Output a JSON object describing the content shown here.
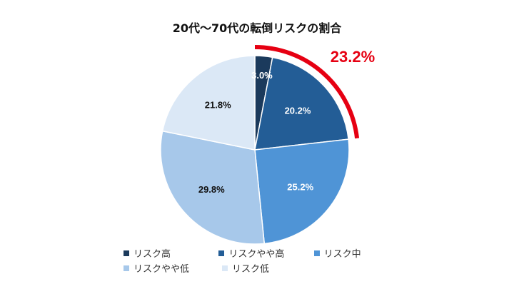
{
  "chart_data": {
    "type": "pie",
    "title": "20代～70代の転倒リスクの割合",
    "categories": [
      "リスク高",
      "リスクやや高",
      "リスク中",
      "リスクやや低",
      "リスク低"
    ],
    "values": [
      3.0,
      20.2,
      25.2,
      29.8,
      21.8
    ],
    "labels": [
      "3.0%",
      "20.2%",
      "25.2%",
      "29.8%",
      "21.8%"
    ],
    "colors": [
      "#1b3a5c",
      "#235d96",
      "#4f94d6",
      "#a7c8ea",
      "#dbe8f6"
    ],
    "label_colors": [
      "#ffffff",
      "#ffffff",
      "#ffffff",
      "#111111",
      "#111111"
    ],
    "legend_position": "bottom",
    "annotation": {
      "text": "23.2%",
      "color": "#e60012",
      "covers_categories": [
        "リスク高",
        "リスクやや高"
      ]
    }
  }
}
